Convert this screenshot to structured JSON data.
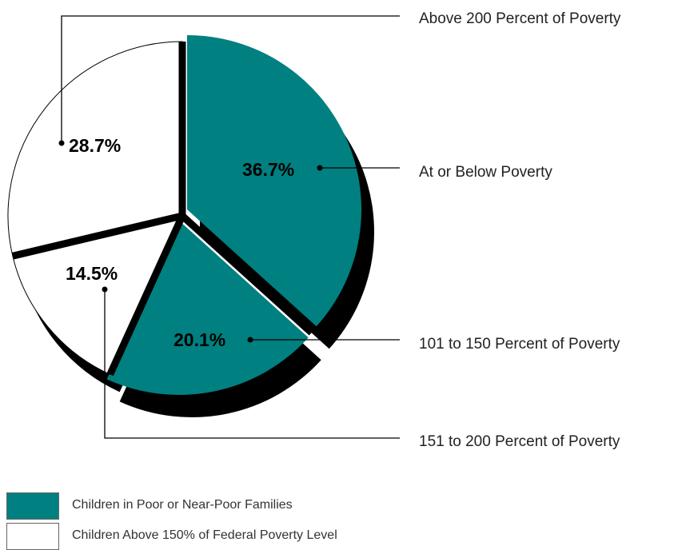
{
  "colors": {
    "teal": "#008080",
    "white": "#ffffff",
    "shadow": "#000000",
    "line": "#000000"
  },
  "chart_data": {
    "type": "pie",
    "title": "",
    "slices": [
      {
        "label": "At or Below Poverty",
        "value": 36.7,
        "value_label": "36.7%",
        "color": "#008080"
      },
      {
        "label": "101 to 150 Percent of Poverty",
        "value": 20.1,
        "value_label": "20.1%",
        "color": "#008080"
      },
      {
        "label": "151 to 200 Percent of Poverty",
        "value": 14.5,
        "value_label": "14.5%",
        "color": "#ffffff"
      },
      {
        "label": "Above 200 Percent of Poverty",
        "value": 28.7,
        "value_label": "28.7%",
        "color": "#ffffff"
      }
    ],
    "legend": [
      {
        "label": "Children in Poor or Near-Poor Families",
        "color": "#008080"
      },
      {
        "label": "Children Above 150% of Federal Poverty Level",
        "color": "#ffffff"
      }
    ]
  }
}
